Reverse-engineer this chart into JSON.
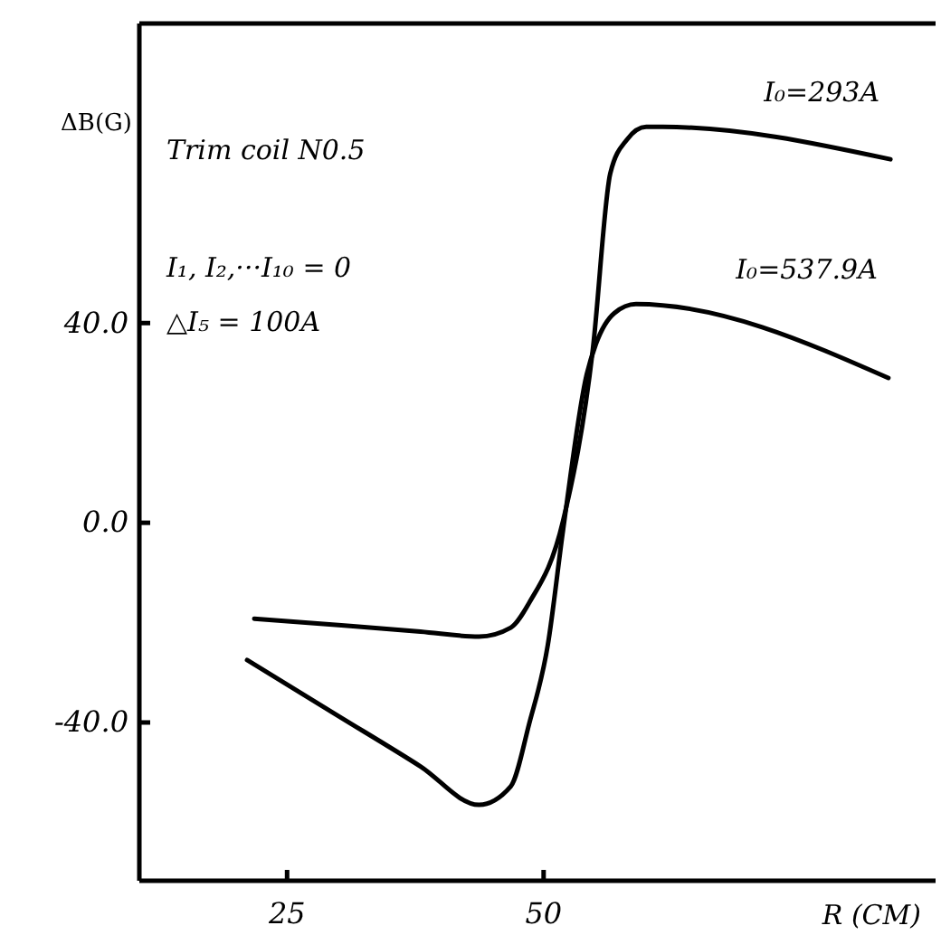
{
  "chart_data": {
    "type": "line",
    "xlabel": "R (CM)",
    "ylabel": "ΔB(G)",
    "xlim": [
      10.6,
      88.2
    ],
    "ylim": [
      -71.7,
      100
    ],
    "xticks": [
      25,
      50
    ],
    "yticks": [
      {
        "value": 40,
        "label": "40.0"
      },
      {
        "value": 0,
        "label": "0.0"
      },
      {
        "value": -40,
        "label": "-40.0"
      }
    ],
    "grid": false,
    "marker": "none",
    "line_style": "solid",
    "series": [
      {
        "name": "I₀=293A",
        "color": "#000000",
        "x": [
          21.8,
          30,
          38,
          43.7,
          46.8,
          48.6,
          51.9,
          54.8,
          56.5,
          58.1,
          60,
          61.6,
          83.8
        ],
        "values": [
          -19.2,
          -20.5,
          -21.8,
          -22.8,
          -21,
          -16,
          0.4,
          34.8,
          70,
          76.7,
          79.3,
          79.3,
          72.8
        ]
      },
      {
        "name": "I₀=537.9A",
        "color": "#000000",
        "x": [
          21.1,
          30,
          38,
          43.7,
          46.8,
          48.6,
          50.4,
          51.9,
          54.2,
          55.1,
          56.9,
          59,
          83.6
        ],
        "values": [
          -27.5,
          -38.7,
          -48.8,
          -56.5,
          -52.8,
          -40.2,
          -24.6,
          -1.4,
          29.7,
          35.8,
          42,
          43.8,
          29
        ]
      }
    ],
    "annotations": [
      "Trim coil N0.5",
      "I₁, I₂,···I₁₀ = 0",
      "△I₅ = 100A"
    ]
  }
}
